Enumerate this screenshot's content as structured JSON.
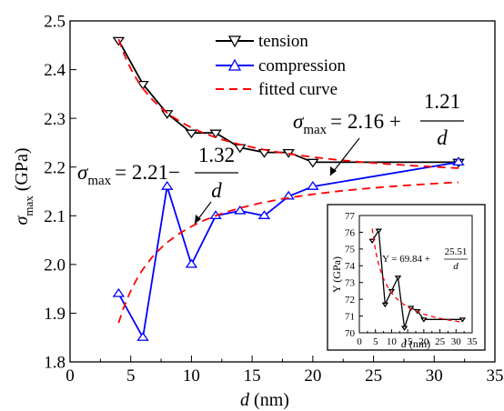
{
  "chart_data": [
    {
      "type": "line",
      "xlabel": "d (nm)",
      "xlabel_italic": "d",
      "xlabel_unit": "(nm)",
      "ylabel": "σmax (GPa)",
      "ylabel_symbol": "σ",
      "ylabel_sub": "max",
      "ylabel_unit": "(GPa)",
      "xlim": [
        0,
        35
      ],
      "ylim": [
        1.8,
        2.5
      ],
      "xticks": [
        0,
        5,
        10,
        15,
        20,
        25,
        30,
        35
      ],
      "yticks": [
        1.8,
        1.9,
        2.0,
        2.1,
        2.2,
        2.3,
        2.4,
        2.5
      ],
      "ytick_labels": [
        "1.8",
        "1.9",
        "2.0",
        "2.1",
        "2.2",
        "2.3",
        "2.4",
        "2.5"
      ],
      "grid": false,
      "legend_position": "top-center",
      "series": [
        {
          "name": "tension",
          "color": "#000000",
          "marker": "triangle-down",
          "x": [
            4,
            6,
            8,
            10,
            12,
            14,
            16,
            18,
            20,
            32
          ],
          "y": [
            2.46,
            2.37,
            2.31,
            2.27,
            2.27,
            2.24,
            2.23,
            2.23,
            2.21,
            2.21
          ]
        },
        {
          "name": "compression",
          "color": "#0000ff",
          "marker": "triangle-up",
          "x": [
            4,
            6,
            8,
            10,
            12,
            14,
            16,
            18,
            20,
            32
          ],
          "y": [
            1.94,
            1.85,
            2.16,
            2.0,
            2.1,
            2.11,
            2.1,
            2.14,
            2.16,
            2.21
          ]
        },
        {
          "name": "fitted curve",
          "color": "#ff0000",
          "style": "dashed",
          "curves": [
            {
              "formula": "2.16 + 1.21/d",
              "x_from": 4,
              "x_to": 32
            },
            {
              "formula": "2.21 - 1.32/d",
              "x_from": 4,
              "x_to": 32
            }
          ]
        }
      ],
      "annotations": {
        "tension_eq": {
          "lhs": "σ",
          "sub": "max",
          "mid": "= 2.16 +",
          "num": "1.21",
          "den": "d"
        },
        "compression_eq": {
          "lhs": "σ",
          "sub": "max",
          "mid": "= 2.21−",
          "num": "1.32",
          "den": "d"
        }
      }
    },
    {
      "type": "line",
      "inset": true,
      "xlabel": "d (nm)",
      "xlabel_italic": "d",
      "xlabel_unit": "(nm)",
      "ylabel": "Y (GPa)",
      "xlim": [
        0,
        35
      ],
      "ylim": [
        70,
        77
      ],
      "xticks": [
        0,
        5,
        10,
        15,
        20,
        25,
        30,
        35
      ],
      "yticks": [
        70,
        71,
        72,
        73,
        74,
        75,
        76,
        77
      ],
      "series": [
        {
          "name": "",
          "color": "#000000",
          "marker": "triangle-down-small",
          "x": [
            4,
            6,
            8,
            10,
            12,
            14,
            16,
            18,
            20,
            32
          ],
          "y": [
            75.5,
            76.1,
            71.7,
            72.5,
            73.3,
            70.3,
            71.5,
            71.3,
            70.8,
            70.8
          ]
        },
        {
          "name": "",
          "color": "#ff0000",
          "style": "dashed",
          "curves": [
            {
              "formula": "69.84 + 25.51/d",
              "x_from": 4,
              "x_to": 32
            }
          ]
        }
      ],
      "annotation": {
        "mid": "Y = 69.84 +",
        "num": "25.51",
        "den": "d"
      }
    }
  ]
}
